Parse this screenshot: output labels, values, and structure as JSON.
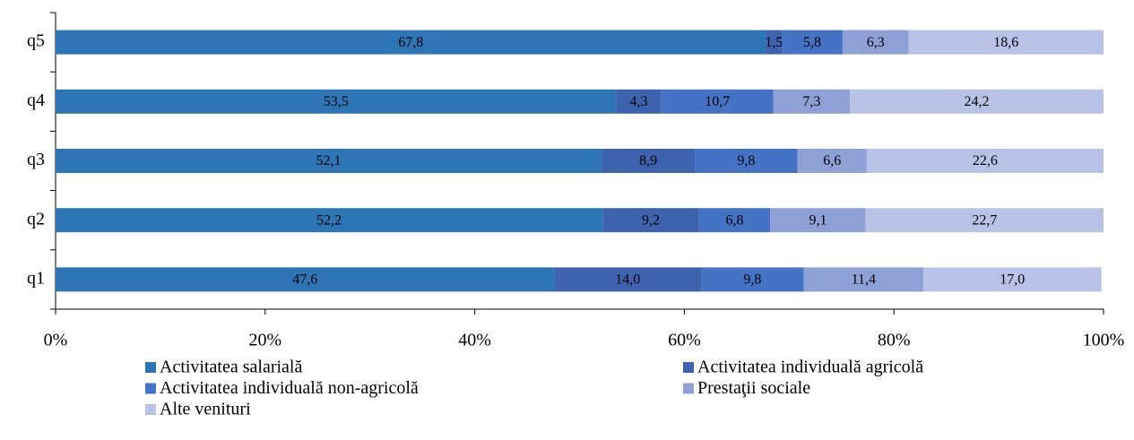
{
  "chart_data": {
    "type": "stacked-barh",
    "categories": [
      "q1",
      "q2",
      "q3",
      "q4",
      "q5"
    ],
    "series": [
      {
        "name": "Activitatea salarială",
        "color": "#2e75b6",
        "values": [
          47.6,
          52.2,
          52.1,
          53.5,
          67.8
        ],
        "value_labels": [
          "47,6",
          "52,2",
          "52,1",
          "53,5",
          "67,8"
        ]
      },
      {
        "name": "Activitatea individuală agricolă",
        "color": "#3d62ae",
        "values": [
          14.0,
          9.2,
          8.9,
          4.3,
          1.5
        ],
        "value_labels": [
          "14,0",
          "9,2",
          "8,9",
          "4,3",
          "1,5"
        ]
      },
      {
        "name": "Activitatea individuală non-agricolă",
        "color": "#4472c4",
        "values": [
          9.8,
          6.8,
          9.8,
          10.7,
          5.8
        ],
        "value_labels": [
          "9,8",
          "6,8",
          "9,8",
          "10,7",
          "5,8"
        ]
      },
      {
        "name": "Prestaţii sociale",
        "color": "#8ea1d6",
        "values": [
          11.4,
          9.1,
          6.6,
          7.3,
          6.3
        ],
        "value_labels": [
          "11,4",
          "9,1",
          "6,6",
          "7,3",
          "6,3"
        ]
      },
      {
        "name": "Alte venituri",
        "color": "#b8c2e6",
        "values": [
          17.0,
          22.7,
          22.6,
          24.2,
          18.6
        ],
        "value_labels": [
          "17,0",
          "22,7",
          "22,6",
          "24,2",
          "18,6"
        ]
      }
    ],
    "xlim": [
      0,
      100
    ],
    "xticks": [
      {
        "value": 0,
        "label": "0%"
      },
      {
        "value": 20,
        "label": "20%"
      },
      {
        "value": 40,
        "label": "40%"
      },
      {
        "value": 60,
        "label": "60%"
      },
      {
        "value": 80,
        "label": "80%"
      },
      {
        "value": 100,
        "label": "100%"
      }
    ],
    "legend": "bottom"
  }
}
